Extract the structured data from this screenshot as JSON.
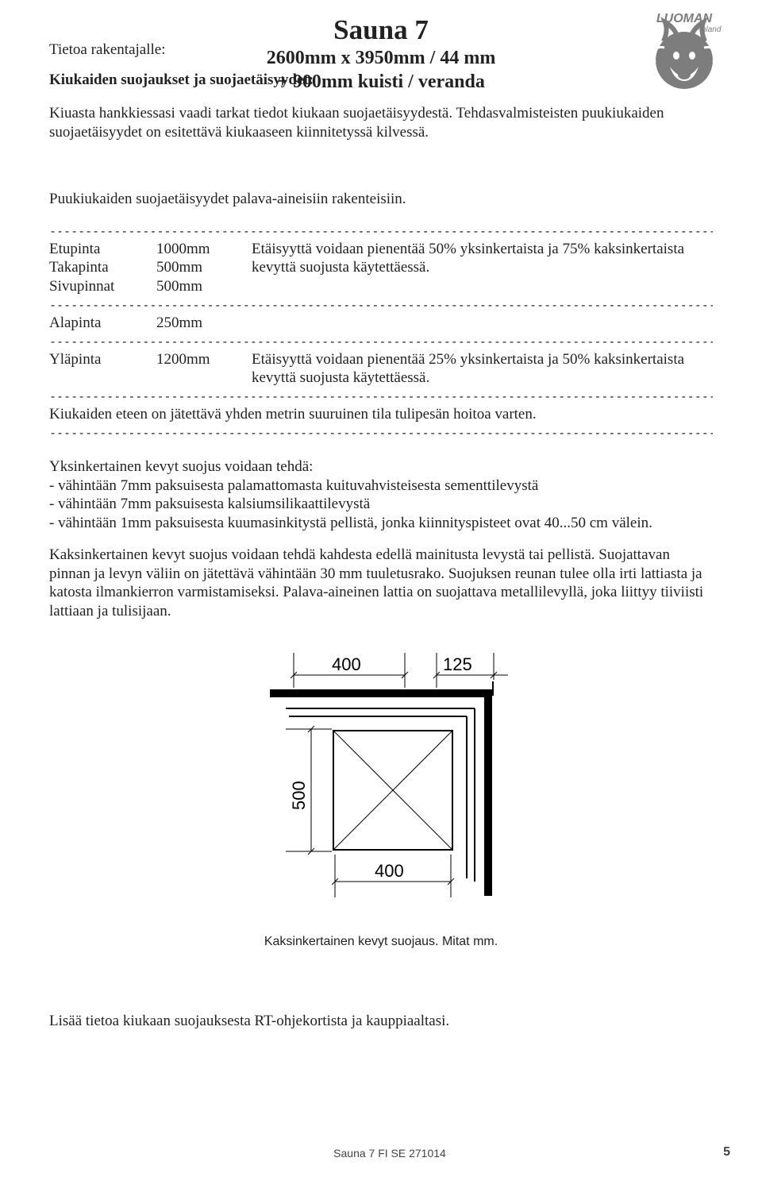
{
  "logo": {
    "top_text": "LUOMAN",
    "sub_text": "Finland",
    "colors": {
      "fill": "#7d7d7d",
      "text": "#7d7d7d"
    }
  },
  "title": {
    "line1": "Sauna 7",
    "line2": "2600mm x 3950mm / 44 mm",
    "line3": "+ 900mm kuisti / veranda"
  },
  "lead_label": "Tietoa rakentajalle:",
  "section_heading": "Kiukaiden suojaukset ja suojaetäisyydet:",
  "intro_p1": "Kiuasta hankkiessasi vaadi tarkat tiedot kiukaan suojaetäisyydestä. Tehdasvalmisteisten puukiukaiden suojaetäisyydet on esitettävä kiukaaseen kiinnitetyssä kilvessä.",
  "intro_p2": "Puukiukaiden suojaetäisyydet palava-aineisiin rakenteisiin.",
  "dash_line": "----------------------------------------------------------------------------------------------------------------------------",
  "spec": {
    "row1": {
      "labels": [
        "Etupinta",
        "Takapinta",
        "Sivupinnat"
      ],
      "values": [
        "1000mm",
        "500mm",
        "500mm"
      ],
      "note": "Etäisyyttä voidaan pienentää 50% yksinkertaista ja 75% kaksinkertaista kevyttä suojusta käytettäessä."
    },
    "row2": {
      "labels": [
        "Alapinta"
      ],
      "values": [
        "250mm"
      ],
      "note": ""
    },
    "row3": {
      "labels": [
        "Yläpinta"
      ],
      "values": [
        "1200mm"
      ],
      "note": "Etäisyyttä voidaan pienentää 25% yksinkertaista ja 50% kaksinkertaista kevyttä suojusta käytettäessä."
    }
  },
  "after_spec_line": "Kiukaiden eteen on jätettävä yhden metrin suuruinen tila tulipesän hoitoa varten.",
  "light_shield": {
    "heading": "Yksinkertainen kevyt suojus voidaan tehdä:",
    "items": [
      "- vähintään 7mm paksuisesta palamattomasta kuituvahvisteisesta sementtilevystä",
      "- vähintään 7mm paksuisesta kalsiumsilikaattilevystä",
      "- vähintään 1mm paksuisesta kuumasinkitystä pellistä, jonka kiinnityspisteet ovat 40...50 cm välein."
    ]
  },
  "double_shield_p": "Kaksinkertainen kevyt suojus voidaan tehdä kahdesta edellä mainitusta levystä tai pellistä. Suojattavan pinnan ja levyn väliin on jätettävä vähintään 30 mm tuuletusrako. Suojuksen reunan tulee olla irti lattiasta ja katosta ilmankierron varmistamiseksi. Palava-aineinen lattia on suojattava metallilevyllä, joka liittyy tiiviisti lattiaan ja tulisijaan.",
  "diagram": {
    "dim_top_left": "400",
    "dim_top_right": "125",
    "dim_left": "500",
    "dim_bottom": "400",
    "stroke": "#000000",
    "thick": 10,
    "thin": 2,
    "text_size": 22
  },
  "diagram_caption": "Kaksinkertainen kevyt suojaus. Mitat mm.",
  "closing_line": "Lisää tietoa kiukaan suojauksesta RT-ohjekortista ja kauppiaaltasi.",
  "footer": {
    "center": "Sauna 7 FI SE    271014",
    "page": "5"
  }
}
